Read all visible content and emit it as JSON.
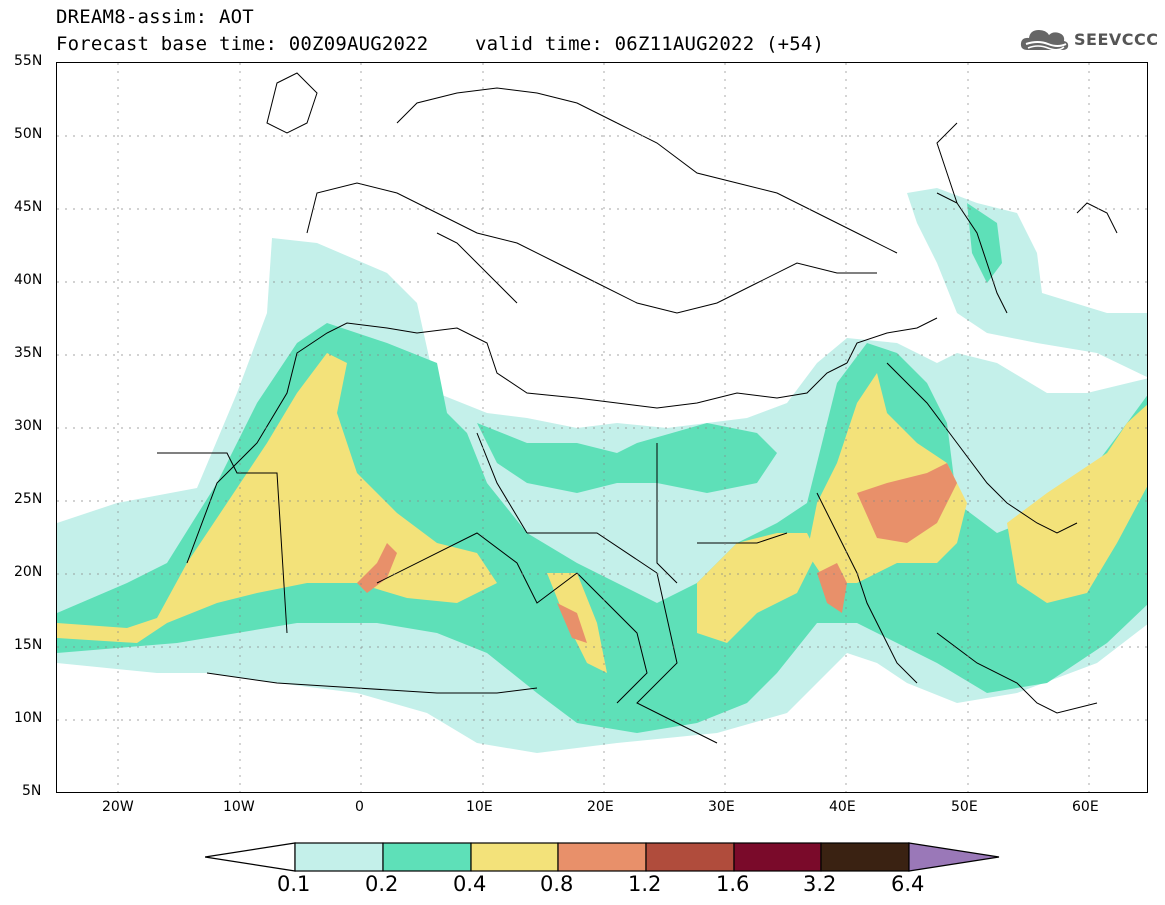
{
  "header": {
    "title": "DREAM8-assim: AOT",
    "subtitle": "Forecast base time: 00Z09AUG2022    valid time: 06Z11AUG2022 (+54)"
  },
  "logo": {
    "text": "SEEVCCC",
    "icon": "cloud-logo-icon"
  },
  "map": {
    "lat_labels": [
      "55N",
      "50N",
      "45N",
      "40N",
      "35N",
      "30N",
      "25N",
      "20N",
      "15N",
      "10N",
      "5N"
    ],
    "lon_labels": [
      "20W",
      "10W",
      "0",
      "10E",
      "20E",
      "30E",
      "40E",
      "50E",
      "60E"
    ]
  },
  "colorbar": {
    "labels": [
      "0.1",
      "0.2",
      "0.4",
      "0.8",
      "1.2",
      "1.6",
      "3.2",
      "6.4"
    ],
    "colors": [
      "#c4f0ea",
      "#5ee0b8",
      "#f3e27a",
      "#e8906a",
      "#b04c3c",
      "#7a0a2a",
      "#3a2212",
      "#9a78b8"
    ]
  }
}
